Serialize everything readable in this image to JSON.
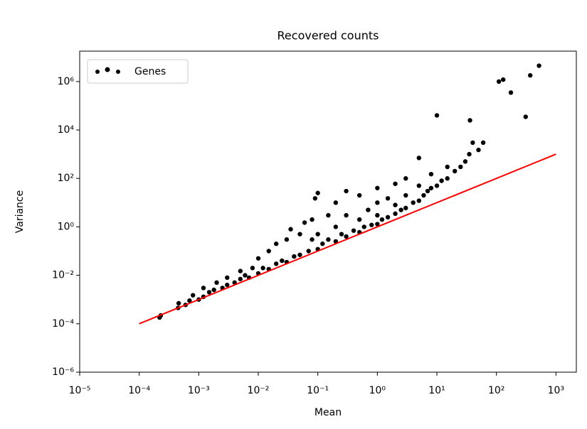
{
  "chart_data": {
    "type": "scatter",
    "title": "Recovered counts",
    "x_label": "Mean",
    "y_label": "Variance",
    "x_scale": "log",
    "y_scale": "log",
    "legend": "upper left",
    "xlim": [
      1e-05,
      2200
    ],
    "ylim": [
      1e-06,
      18000000
    ],
    "xticks": [
      {
        "value": 1e-05,
        "label": "10⁻⁵"
      },
      {
        "value": 0.0001,
        "label": "10⁻⁴"
      },
      {
        "value": 0.001,
        "label": "10⁻³"
      },
      {
        "value": 0.01,
        "label": "10⁻²"
      },
      {
        "value": 0.1,
        "label": "10⁻¹"
      },
      {
        "value": 1,
        "label": "10⁰"
      },
      {
        "value": 10,
        "label": "10¹"
      },
      {
        "value": 100,
        "label": "10²"
      },
      {
        "value": 1000,
        "label": "10³"
      }
    ],
    "yticks": [
      {
        "value": 1e-06,
        "label": "10⁻⁶"
      },
      {
        "value": 0.0001,
        "label": "10⁻⁴"
      },
      {
        "value": 0.01,
        "label": "10⁻²"
      },
      {
        "value": 1,
        "label": "10⁰"
      },
      {
        "value": 100,
        "label": "10²"
      },
      {
        "value": 10000,
        "label": "10⁴"
      },
      {
        "value": 1000000,
        "label": "10⁶"
      }
    ],
    "series": [
      {
        "name": "Genes",
        "color": "#000000",
        "x": [
          0.00022,
          0.00023,
          0.00045,
          0.00046,
          0.0006,
          0.0007,
          0.0008,
          0.001,
          0.0012,
          0.0012,
          0.0015,
          0.0018,
          0.002,
          0.0025,
          0.003,
          0.003,
          0.004,
          0.005,
          0.005,
          0.006,
          0.007,
          0.008,
          0.01,
          0.01,
          0.012,
          0.015,
          0.015,
          0.02,
          0.02,
          0.025,
          0.03,
          0.03,
          0.035,
          0.04,
          0.05,
          0.05,
          0.06,
          0.07,
          0.08,
          0.08,
          0.1,
          0.1,
          0.1,
          0.09,
          0.12,
          0.15,
          0.15,
          0.2,
          0.2,
          0.2,
          0.25,
          0.3,
          0.3,
          0.3,
          0.4,
          0.5,
          0.5,
          0.5,
          0.6,
          0.7,
          0.8,
          1,
          1,
          1,
          1,
          1.2,
          1.5,
          1.5,
          2,
          2,
          2,
          2.5,
          3,
          3,
          3,
          4,
          5,
          5,
          5,
          6,
          7,
          8,
          8,
          10,
          10,
          12,
          15,
          15,
          20,
          25,
          30,
          35,
          36,
          40,
          50,
          60,
          110,
          130,
          175,
          310,
          370,
          520
        ],
        "y": [
          0.00018,
          0.00022,
          0.00045,
          0.0007,
          0.0006,
          0.0009,
          0.0015,
          0.001,
          0.0013,
          0.003,
          0.002,
          0.0025,
          0.005,
          0.003,
          0.004,
          0.008,
          0.005,
          0.007,
          0.015,
          0.01,
          0.008,
          0.02,
          0.012,
          0.05,
          0.02,
          0.018,
          0.1,
          0.03,
          0.2,
          0.04,
          0.035,
          0.3,
          0.8,
          0.06,
          0.07,
          0.5,
          1.5,
          0.1,
          0.3,
          2,
          0.12,
          0.5,
          25,
          15,
          0.2,
          0.3,
          3,
          0.25,
          1,
          10,
          0.5,
          0.4,
          3,
          30,
          0.7,
          0.6,
          2,
          20,
          1,
          5,
          1.2,
          1.3,
          3,
          10,
          40,
          2,
          2.5,
          15,
          3.5,
          8,
          60,
          5,
          6,
          20,
          100,
          10,
          12,
          50,
          700,
          20,
          30,
          40,
          150,
          50,
          40000,
          80,
          100,
          300,
          200,
          300,
          500,
          1000,
          25000,
          3000,
          1500,
          3000,
          1000000,
          1200000,
          350000,
          35000,
          1800000,
          4500000
        ]
      }
    ],
    "reference_line": {
      "color": "#ff0000",
      "x": [
        0.0001,
        1000
      ],
      "y": [
        0.0001,
        1000
      ]
    }
  }
}
